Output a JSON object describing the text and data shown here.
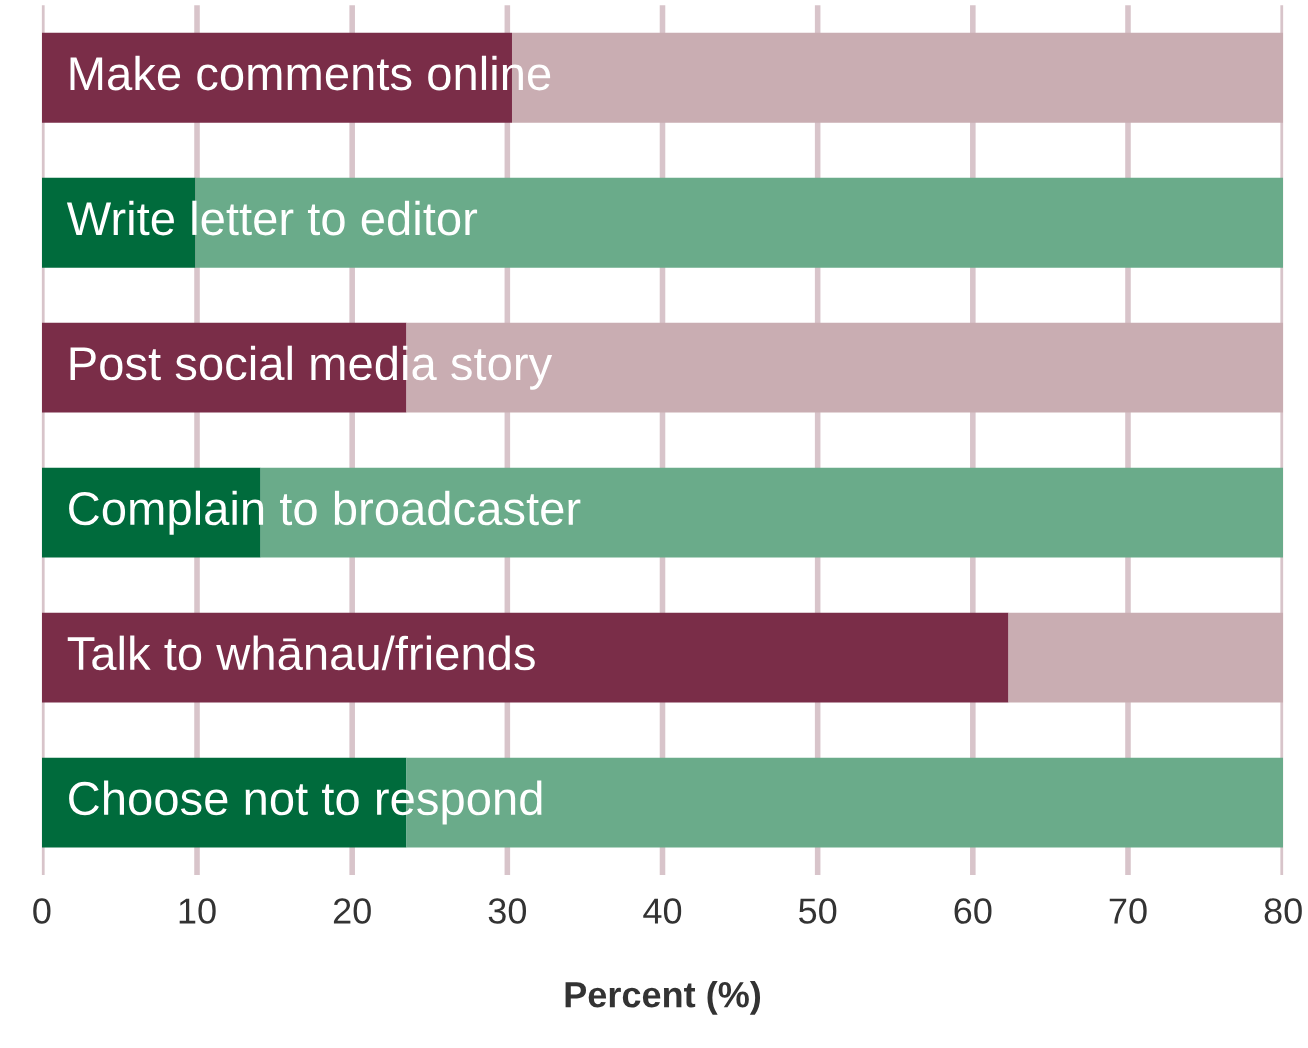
{
  "chart_data": {
    "type": "bar",
    "orientation": "horizontal",
    "stacked": true,
    "xlabel": "Percent (%)",
    "categories": [
      "Make comments online",
      "Write letter to editor",
      "Post social media story",
      "Complain to broadcaster",
      "Talk to whānau/friends",
      "Choose not to respond"
    ],
    "series": [
      {
        "values": [
          30.3,
          9.9,
          23.5,
          14.1,
          62.3,
          23.5
        ],
        "colors": [
          "#7a2d48",
          "#006b3c",
          "#7a2d48",
          "#006b3c",
          "#7a2d48",
          "#006b3c"
        ]
      },
      {
        "values": [
          49.7,
          70.1,
          56.5,
          65.9,
          17.7,
          56.5
        ],
        "colors": [
          "#c9adb2",
          "#6aab8a",
          "#c9adb2",
          "#6aab8a",
          "#c9adb2",
          "#6aab8a"
        ]
      }
    ],
    "xlim": [
      0,
      80
    ],
    "xticks": [
      0,
      10,
      20,
      30,
      40,
      50,
      60,
      70,
      80
    ],
    "grid": "x",
    "legend": false
  }
}
